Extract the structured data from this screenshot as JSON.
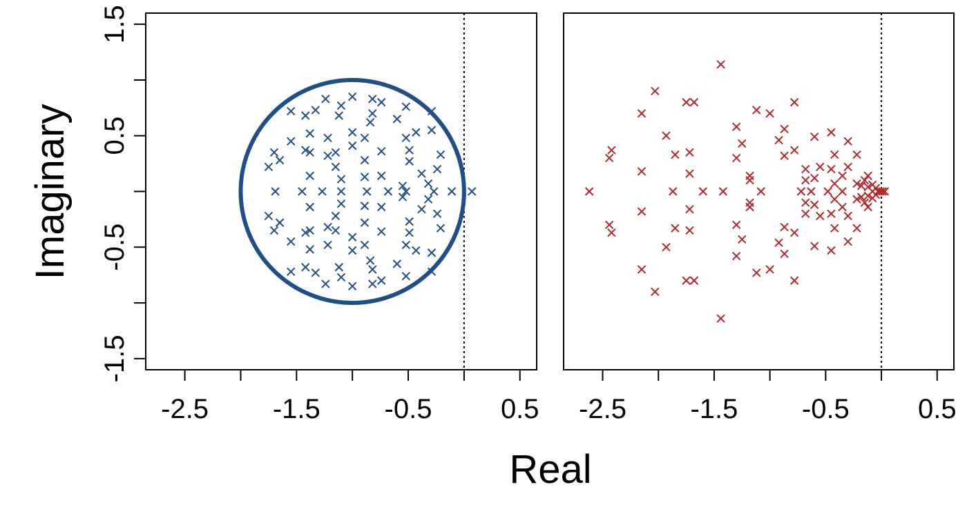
{
  "ylabel": "Imaginary",
  "xlabel": "Real",
  "chart_data": [
    {
      "type": "scatter",
      "panel": "left",
      "xlim": [
        -2.85,
        0.65
      ],
      "ylim": [
        -1.6,
        1.6
      ],
      "xticks": [
        -2.5,
        -2,
        -1.5,
        -1,
        -0.5,
        0,
        0.5
      ],
      "xtick_labels": [
        "-2.5",
        "",
        "-1.5",
        "",
        "-0.5",
        "",
        "0.5"
      ],
      "yticks": [
        -1.5,
        -1,
        -0.5,
        0,
        0.5,
        1,
        1.5
      ],
      "ytick_labels": [
        "-1.5",
        "",
        "-0.5",
        "",
        "0.5",
        "",
        "1.5"
      ],
      "marker_color": "#1f4e89",
      "circle": {
        "center": [
          -1,
          0
        ],
        "radius": 1,
        "color": "#1f4e89"
      },
      "reference_line_x": 0,
      "points": [
        [
          0.07,
          0.0
        ],
        [
          -0.11,
          0.0
        ],
        [
          -0.27,
          0.0
        ],
        [
          -0.52,
          0.0
        ],
        [
          -0.68,
          0.0
        ],
        [
          -0.87,
          0.0
        ],
        [
          -1.1,
          0.0
        ],
        [
          -1.27,
          0.0
        ],
        [
          -1.45,
          0.0
        ],
        [
          -1.69,
          0.0
        ],
        [
          -1.55,
          0.72
        ],
        [
          -1.55,
          0.45
        ],
        [
          -1.55,
          -0.45
        ],
        [
          -1.55,
          -0.72
        ],
        [
          -1.42,
          0.68
        ],
        [
          -1.42,
          0.37
        ],
        [
          -1.42,
          -0.37
        ],
        [
          -1.42,
          -0.68
        ],
        [
          -1.38,
          0.52
        ],
        [
          -1.38,
          0.35
        ],
        [
          -1.38,
          0.14
        ],
        [
          -1.38,
          -0.14
        ],
        [
          -1.38,
          -0.35
        ],
        [
          -1.38,
          -0.52
        ],
        [
          -1.33,
          0.73
        ],
        [
          -1.33,
          -0.73
        ],
        [
          -1.24,
          0.83
        ],
        [
          -1.24,
          -0.83
        ],
        [
          -1.22,
          0.48
        ],
        [
          -1.22,
          0.32
        ],
        [
          -1.22,
          -0.32
        ],
        [
          -1.22,
          -0.48
        ],
        [
          -1.15,
          0.35
        ],
        [
          -1.15,
          0.22
        ],
        [
          -1.15,
          -0.22
        ],
        [
          -1.15,
          -0.35
        ],
        [
          -1.12,
          0.68
        ],
        [
          -1.12,
          -0.68
        ],
        [
          -1.1,
          0.77
        ],
        [
          -1.1,
          0.11
        ],
        [
          -1.1,
          -0.11
        ],
        [
          -1.1,
          -0.77
        ],
        [
          -1.0,
          0.85
        ],
        [
          -1.0,
          0.53
        ],
        [
          -1.0,
          0.41
        ],
        [
          -1.0,
          -0.41
        ],
        [
          -1.0,
          -0.53
        ],
        [
          -1.0,
          -0.85
        ],
        [
          -0.89,
          0.48
        ],
        [
          -0.89,
          0.28
        ],
        [
          -0.89,
          0.13
        ],
        [
          -0.89,
          -0.13
        ],
        [
          -0.89,
          -0.28
        ],
        [
          -0.89,
          -0.48
        ],
        [
          -0.84,
          0.62
        ],
        [
          -0.84,
          -0.62
        ],
        [
          -0.82,
          0.83
        ],
        [
          -0.82,
          0.7
        ],
        [
          -0.82,
          -0.7
        ],
        [
          -0.82,
          -0.83
        ],
        [
          -0.74,
          0.8
        ],
        [
          -0.74,
          0.36
        ],
        [
          -0.74,
          0.14
        ],
        [
          -0.74,
          -0.14
        ],
        [
          -0.74,
          -0.36
        ],
        [
          -0.74,
          -0.8
        ],
        [
          -0.6,
          0.65
        ],
        [
          -0.6,
          -0.65
        ],
        [
          -0.55,
          0.05
        ],
        [
          -0.55,
          -0.05
        ],
        [
          -0.52,
          0.76
        ],
        [
          -0.52,
          0.48
        ],
        [
          -0.52,
          -0.48
        ],
        [
          -0.52,
          -0.76
        ],
        [
          -0.49,
          0.37
        ],
        [
          -0.49,
          0.27
        ],
        [
          -0.49,
          -0.27
        ],
        [
          -0.49,
          -0.37
        ],
        [
          -0.43,
          0.53
        ],
        [
          -0.43,
          -0.53
        ],
        [
          -0.38,
          0.16
        ],
        [
          -0.38,
          -0.16
        ],
        [
          -0.32,
          0.07
        ],
        [
          -0.32,
          -0.07
        ],
        [
          -0.29,
          0.72
        ],
        [
          -0.29,
          0.55
        ],
        [
          -0.29,
          -0.55
        ],
        [
          -0.29,
          -0.72
        ],
        [
          -0.24,
          0.2
        ],
        [
          -0.24,
          -0.2
        ],
        [
          -0.21,
          0.33
        ],
        [
          -0.21,
          -0.33
        ],
        [
          -1.75,
          0.22
        ],
        [
          -1.75,
          -0.22
        ],
        [
          -1.7,
          0.35
        ],
        [
          -1.7,
          -0.35
        ],
        [
          -1.65,
          0.28
        ],
        [
          -1.65,
          -0.28
        ]
      ]
    },
    {
      "type": "scatter",
      "panel": "right",
      "xlim": [
        -2.85,
        0.65
      ],
      "ylim": [
        -1.6,
        1.6
      ],
      "xticks": [
        -2.5,
        -2,
        -1.5,
        -1,
        -0.5,
        0,
        0.5
      ],
      "xtick_labels": [
        "-2.5",
        "",
        "-1.5",
        "",
        "-0.5",
        "",
        "0.5"
      ],
      "marker_color": "#b3262a",
      "reference_line_x": 0,
      "points": [
        [
          -2.62,
          0.0
        ],
        [
          -1.87,
          0.0
        ],
        [
          -1.6,
          0.0
        ],
        [
          -1.42,
          0.0
        ],
        [
          -1.08,
          0.0
        ],
        [
          -0.72,
          0.0
        ],
        [
          -0.63,
          0.0
        ],
        [
          -0.48,
          0.0
        ],
        [
          -0.35,
          0.0
        ],
        [
          -2.42,
          0.37
        ],
        [
          -2.42,
          -0.37
        ],
        [
          -2.44,
          0.3
        ],
        [
          -2.44,
          -0.3
        ],
        [
          -2.15,
          0.7
        ],
        [
          -2.15,
          0.18
        ],
        [
          -2.15,
          -0.18
        ],
        [
          -2.15,
          -0.7
        ],
        [
          -2.03,
          0.9
        ],
        [
          -2.03,
          -0.9
        ],
        [
          -1.93,
          0.5
        ],
        [
          -1.93,
          -0.5
        ],
        [
          -1.85,
          0.33
        ],
        [
          -1.85,
          -0.33
        ],
        [
          -1.75,
          0.8
        ],
        [
          -1.75,
          -0.8
        ],
        [
          -1.68,
          0.8
        ],
        [
          -1.68,
          -0.8
        ],
        [
          -1.72,
          0.35
        ],
        [
          -1.72,
          0.16
        ],
        [
          -1.72,
          -0.16
        ],
        [
          -1.72,
          -0.35
        ],
        [
          -1.44,
          1.14
        ],
        [
          -1.44,
          -1.14
        ],
        [
          -1.3,
          0.58
        ],
        [
          -1.3,
          0.3
        ],
        [
          -1.3,
          -0.3
        ],
        [
          -1.3,
          -0.58
        ],
        [
          -1.25,
          0.43
        ],
        [
          -1.25,
          -0.43
        ],
        [
          -1.18,
          0.14
        ],
        [
          -1.18,
          0.1
        ],
        [
          -1.18,
          -0.1
        ],
        [
          -1.18,
          -0.14
        ],
        [
          -1.12,
          0.73
        ],
        [
          -1.12,
          -0.73
        ],
        [
          -1.0,
          0.7
        ],
        [
          -1.0,
          -0.7
        ],
        [
          -0.92,
          0.46
        ],
        [
          -0.92,
          -0.46
        ],
        [
          -0.87,
          0.56
        ],
        [
          -0.87,
          0.32
        ],
        [
          -0.87,
          -0.32
        ],
        [
          -0.87,
          -0.56
        ],
        [
          -0.78,
          0.8
        ],
        [
          -0.78,
          0.37
        ],
        [
          -0.78,
          -0.37
        ],
        [
          -0.78,
          -0.8
        ],
        [
          -0.68,
          0.2
        ],
        [
          -0.68,
          0.1
        ],
        [
          -0.68,
          -0.1
        ],
        [
          -0.68,
          -0.2
        ],
        [
          -0.6,
          0.49
        ],
        [
          -0.6,
          0.12
        ],
        [
          -0.6,
          -0.12
        ],
        [
          -0.6,
          -0.49
        ],
        [
          -0.55,
          0.22
        ],
        [
          -0.55,
          -0.22
        ],
        [
          -0.45,
          0.53
        ],
        [
          -0.45,
          0.2
        ],
        [
          -0.45,
          -0.2
        ],
        [
          -0.45,
          -0.53
        ],
        [
          -0.42,
          0.33
        ],
        [
          -0.42,
          0.07
        ],
        [
          -0.42,
          -0.07
        ],
        [
          -0.42,
          -0.33
        ],
        [
          -0.35,
          0.14
        ],
        [
          -0.35,
          -0.14
        ],
        [
          -0.3,
          0.45
        ],
        [
          -0.3,
          0.22
        ],
        [
          -0.3,
          -0.22
        ],
        [
          -0.3,
          -0.45
        ],
        [
          -0.22,
          0.33
        ],
        [
          -0.22,
          0.07
        ],
        [
          -0.22,
          -0.07
        ],
        [
          -0.22,
          -0.33
        ],
        [
          -0.15,
          0.1
        ],
        [
          -0.15,
          -0.1
        ],
        [
          -0.12,
          0.14
        ],
        [
          -0.12,
          0.04
        ],
        [
          -0.12,
          -0.04
        ],
        [
          -0.12,
          -0.14
        ],
        [
          -0.08,
          0.06
        ],
        [
          -0.08,
          0.0
        ],
        [
          -0.08,
          -0.06
        ],
        [
          -0.05,
          0.03
        ],
        [
          -0.05,
          -0.03
        ],
        [
          -0.03,
          0.0
        ],
        [
          -0.01,
          0.0
        ],
        [
          0.01,
          0.0
        ],
        [
          0.03,
          0.0
        ],
        [
          -0.18,
          0.05
        ],
        [
          -0.18,
          -0.05
        ]
      ]
    }
  ]
}
